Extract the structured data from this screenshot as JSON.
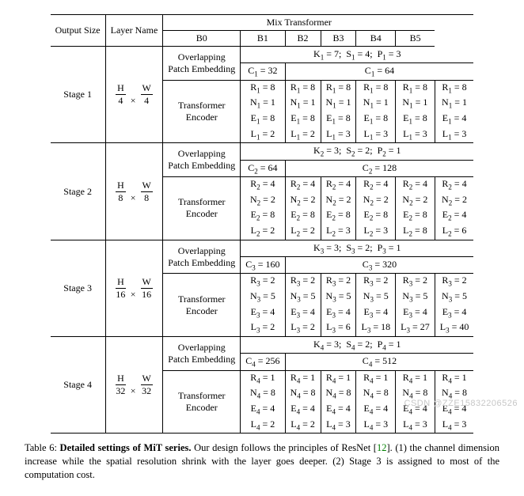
{
  "header": {
    "output_size": "Output Size",
    "layer_name": "Layer Name",
    "mix_title": "Mix Transformer",
    "cols": [
      "B0",
      "B1",
      "B2",
      "B3",
      "B4",
      "B5"
    ]
  },
  "layer_labels": {
    "ope": "Overlapping Patch Embedding",
    "te": "Transformer Encoder"
  },
  "stages": [
    {
      "name": "Stage 1",
      "output_html": "<span style='display:inline-block'><span style='border-bottom:1px solid #000;display:block;padding:0 2px'>H</span><span>4</span></span> &nbsp;×&nbsp; <span style='display:inline-block'><span style='border-bottom:1px solid #000;display:block;padding:0 2px'>W</span><span>4</span></span>",
      "ksp": "K<span class='sub'>1</span> = 7;&nbsp; S<span class='sub'>1</span> = 4;&nbsp; P<span class='sub'>1</span> = 3",
      "c_left": "C<span class='sub'>1</span> = 32",
      "c_right": "C<span class='sub'>1</span> = 64",
      "rows": [
        [
          "R<span class='sub'>1</span> = 8",
          "R<span class='sub'>1</span> = 8",
          "R<span class='sub'>1</span> = 8",
          "R<span class='sub'>1</span> = 8",
          "R<span class='sub'>1</span> = 8",
          "R<span class='sub'>1</span> = 8"
        ],
        [
          "N<span class='sub'>1</span> = 1",
          "N<span class='sub'>1</span> = 1",
          "N<span class='sub'>1</span> = 1",
          "N<span class='sub'>1</span> = 1",
          "N<span class='sub'>1</span> = 1",
          "N<span class='sub'>1</span> = 1"
        ],
        [
          "E<span class='sub'>1</span> = 8",
          "E<span class='sub'>1</span> = 8",
          "E<span class='sub'>1</span> = 8",
          "E<span class='sub'>1</span> = 8",
          "E<span class='sub'>1</span> = 8",
          "E<span class='sub'>1</span> = 4"
        ],
        [
          "L<span class='sub'>1</span> = 2",
          "L<span class='sub'>1</span> = 2",
          "L<span class='sub'>1</span> = 3",
          "L<span class='sub'>1</span> = 3",
          "L<span class='sub'>1</span> = 3",
          "L<span class='sub'>1</span> = 3"
        ]
      ]
    },
    {
      "name": "Stage 2",
      "output_html": "<span style='display:inline-block'><span style='border-bottom:1px solid #000;display:block;padding:0 2px'>H</span><span>8</span></span> &nbsp;×&nbsp; <span style='display:inline-block'><span style='border-bottom:1px solid #000;display:block;padding:0 2px'>W</span><span>8</span></span>",
      "ksp": "K<span class='sub'>2</span> = 3;&nbsp; S<span class='sub'>2</span> = 2;&nbsp; P<span class='sub'>2</span> = 1",
      "c_left": "C<span class='sub'>2</span> = 64",
      "c_right": "C<span class='sub'>2</span> = 128",
      "rows": [
        [
          "R<span class='sub'>2</span> = 4",
          "R<span class='sub'>2</span> = 4",
          "R<span class='sub'>2</span> = 4",
          "R<span class='sub'>2</span> = 4",
          "R<span class='sub'>2</span> = 4",
          "R<span class='sub'>2</span> = 4"
        ],
        [
          "N<span class='sub'>2</span> = 2",
          "N<span class='sub'>2</span> = 2",
          "N<span class='sub'>2</span> = 2",
          "N<span class='sub'>2</span> = 2",
          "N<span class='sub'>2</span> = 2",
          "N<span class='sub'>2</span> = 2"
        ],
        [
          "E<span class='sub'>2</span> = 8",
          "E<span class='sub'>2</span> = 8",
          "E<span class='sub'>2</span> = 8",
          "E<span class='sub'>2</span> = 8",
          "E<span class='sub'>2</span> = 8",
          "E<span class='sub'>2</span> = 4"
        ],
        [
          "L<span class='sub'>2</span> = 2",
          "L<span class='sub'>2</span> = 2",
          "L<span class='sub'>2</span> = 3",
          "L<span class='sub'>2</span> = 3",
          "L<span class='sub'>2</span> = 8",
          "L<span class='sub'>2</span> = 6"
        ]
      ]
    },
    {
      "name": "Stage 3",
      "output_html": "<span style='display:inline-block'><span style='border-bottom:1px solid #000;display:block;padding:0 2px'>H</span><span>16</span></span> &nbsp;×&nbsp; <span style='display:inline-block'><span style='border-bottom:1px solid #000;display:block;padding:0 2px'>W</span><span>16</span></span>",
      "ksp": "K<span class='sub'>3</span> = 3;&nbsp; S<span class='sub'>3</span> = 2;&nbsp; P<span class='sub'>3</span> = 1",
      "c_left": "C<span class='sub'>3</span> = 160",
      "c_right": "C<span class='sub'>3</span> = 320",
      "rows": [
        [
          "R<span class='sub'>3</span> = 2",
          "R<span class='sub'>3</span> = 2",
          "R<span class='sub'>3</span> = 2",
          "R<span class='sub'>3</span> = 2",
          "R<span class='sub'>3</span> = 2",
          "R<span class='sub'>3</span> = 2"
        ],
        [
          "N<span class='sub'>3</span> = 5",
          "N<span class='sub'>3</span> = 5",
          "N<span class='sub'>3</span> = 5",
          "N<span class='sub'>3</span> = 5",
          "N<span class='sub'>3</span> = 5",
          "N<span class='sub'>3</span> = 5"
        ],
        [
          "E<span class='sub'>3</span> = 4",
          "E<span class='sub'>3</span> = 4",
          "E<span class='sub'>3</span> = 4",
          "E<span class='sub'>3</span> = 4",
          "E<span class='sub'>3</span> = 4",
          "E<span class='sub'>3</span> = 4"
        ],
        [
          "L<span class='sub'>3</span> = 2",
          "L<span class='sub'>3</span> = 2",
          "L<span class='sub'>3</span> = 6",
          "L<span class='sub'>3</span> = 18",
          "L<span class='sub'>3</span> = 27",
          "L<span class='sub'>3</span> = 40"
        ]
      ]
    },
    {
      "name": "Stage 4",
      "output_html": "<span style='display:inline-block'><span style='border-bottom:1px solid #000;display:block;padding:0 2px'>H</span><span>32</span></span> &nbsp;×&nbsp; <span style='display:inline-block'><span style='border-bottom:1px solid #000;display:block;padding:0 2px'>W</span><span>32</span></span>",
      "ksp": "K<span class='sub'>4</span> = 3;&nbsp; S<span class='sub'>4</span> = 2;&nbsp; P<span class='sub'>4</span> = 1",
      "c_left": "C<span class='sub'>4</span> = 256",
      "c_right": "C<span class='sub'>4</span> = 512",
      "rows": [
        [
          "R<span class='sub'>4</span> = 1",
          "R<span class='sub'>4</span> = 1",
          "R<span class='sub'>4</span> = 1",
          "R<span class='sub'>4</span> = 1",
          "R<span class='sub'>4</span> = 1",
          "R<span class='sub'>4</span> = 1"
        ],
        [
          "N<span class='sub'>4</span> = 8",
          "N<span class='sub'>4</span> = 8",
          "N<span class='sub'>4</span> = 8",
          "N<span class='sub'>4</span> = 8",
          "N<span class='sub'>4</span> = 8",
          "N<span class='sub'>4</span> = 8"
        ],
        [
          "E<span class='sub'>4</span> = 4",
          "E<span class='sub'>4</span> = 4",
          "E<span class='sub'>4</span> = 4",
          "E<span class='sub'>4</span> = 4",
          "E<span class='sub'>4</span> = 4",
          "E<span class='sub'>4</span> = 4"
        ],
        [
          "L<span class='sub'>4</span> = 2",
          "L<span class='sub'>4</span> = 2",
          "L<span class='sub'>4</span> = 3",
          "L<span class='sub'>4</span> = 3",
          "L<span class='sub'>4</span> = 3",
          "L<span class='sub'>4</span> = 3"
        ]
      ]
    }
  ],
  "caption": {
    "prefix": "Table 6: ",
    "bold": "Detailed settings of MiT series.",
    "rest_a": " Our design follows the principles of ResNet [",
    "ref": "12",
    "rest_b": "]. (1) the channel dimension increase while the spatial resolution shrink with the layer goes deeper. (2) Stage 3 is assigned to most of the computation cost."
  },
  "watermark": "CSDN @ZZE15832206526"
}
